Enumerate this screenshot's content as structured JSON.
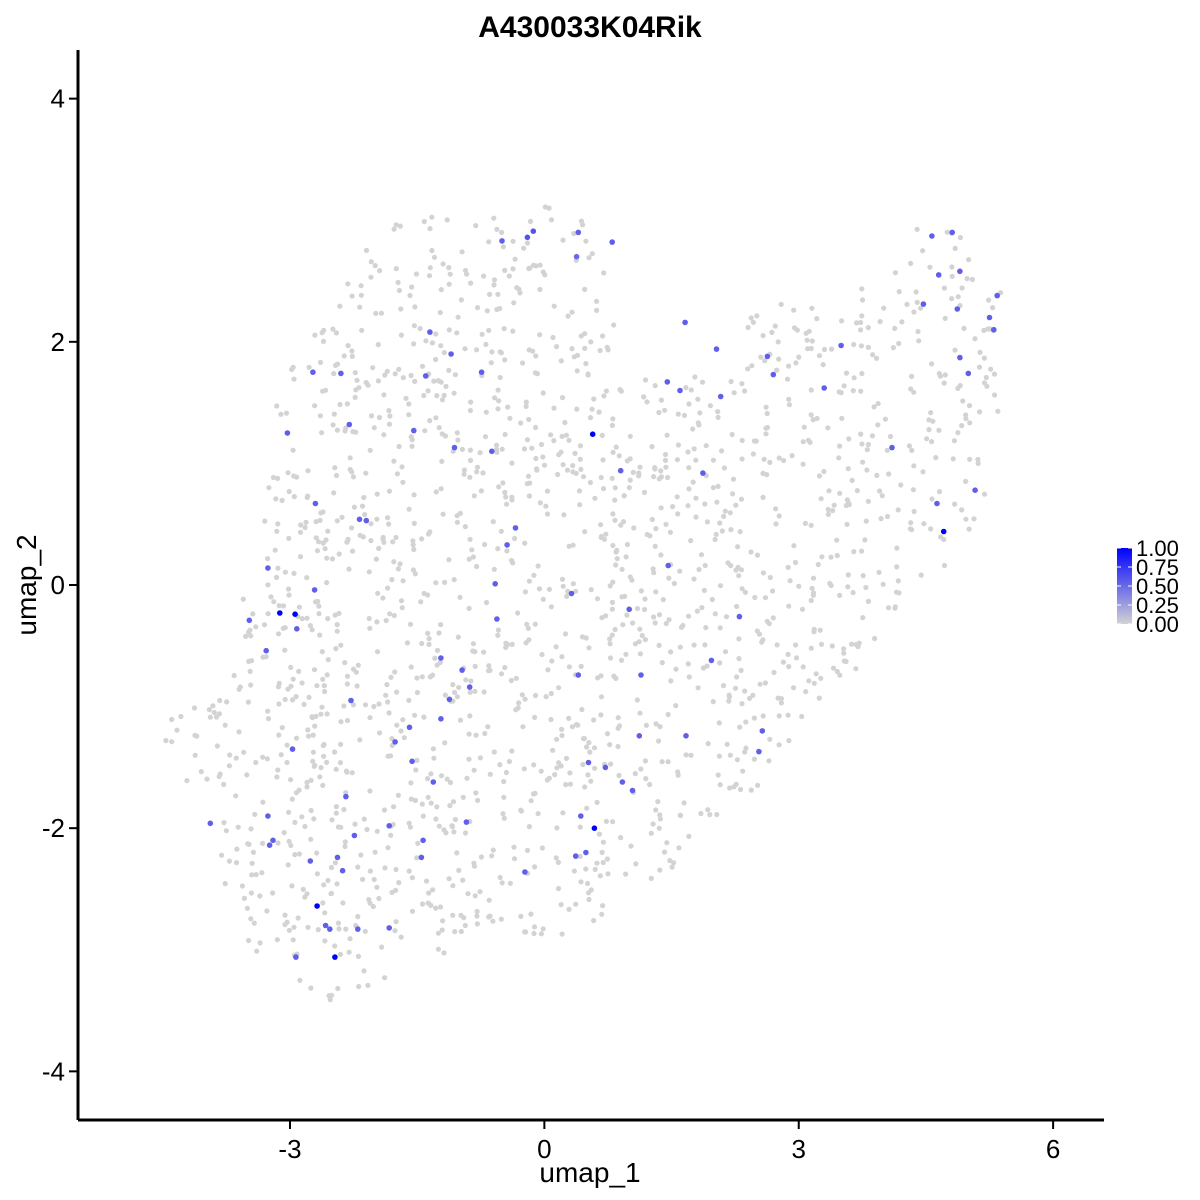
{
  "chart_data": {
    "type": "scatter",
    "title": "A430033K04Rik",
    "xlabel": "umap_1",
    "ylabel": "umap_2",
    "xlim": [
      -5.5,
      6.6
    ],
    "ylim": [
      -4.4,
      4.4
    ],
    "x_ticks": [
      -3,
      0,
      3,
      6
    ],
    "y_ticks": [
      -4,
      -2,
      0,
      2,
      4
    ],
    "x_tick_labels": [
      "-3",
      "0",
      "3",
      "6"
    ],
    "y_tick_labels": [
      "-4",
      "-2",
      "0",
      "2",
      "4"
    ],
    "grid": false,
    "legend": {
      "placement": "right",
      "type": "colorbar",
      "labels": [
        "1.00",
        "0.75",
        "0.50",
        "0.25",
        "0.00"
      ],
      "values": [
        1.0,
        0.75,
        0.5,
        0.25,
        0.0
      ]
    },
    "colors": {
      "low": "#d3d3d3",
      "high": "#0000ff"
    },
    "background_points": {
      "count": 1750,
      "value": 0.0,
      "cloud_outline": [
        [
          -4.7,
          -1.2
        ],
        [
          -4.5,
          -1.3
        ],
        [
          -4.3,
          -1.5
        ],
        [
          -4.0,
          -1.9
        ],
        [
          -3.75,
          -2.55
        ],
        [
          -3.5,
          -2.95
        ],
        [
          -3.2,
          -3.2
        ],
        [
          -2.9,
          -3.25
        ],
        [
          -2.6,
          -3.45
        ],
        [
          -2.25,
          -3.35
        ],
        [
          -1.6,
          -3.15
        ],
        [
          -1.0,
          -3.0
        ],
        [
          -0.4,
          -2.9
        ],
        [
          0.3,
          -2.9
        ],
        [
          1.0,
          -2.55
        ],
        [
          1.6,
          -2.3
        ],
        [
          2.1,
          -1.9
        ],
        [
          2.6,
          -1.6
        ],
        [
          3.0,
          -1.15
        ],
        [
          3.6,
          -0.75
        ],
        [
          4.0,
          -0.5
        ],
        [
          4.4,
          -0.05
        ],
        [
          4.75,
          0.15
        ],
        [
          5.15,
          0.55
        ],
        [
          5.3,
          1.15
        ],
        [
          5.45,
          1.9
        ],
        [
          5.4,
          2.45
        ],
        [
          5.05,
          2.7
        ],
        [
          4.75,
          3.05
        ],
        [
          4.4,
          2.95
        ],
        [
          4.05,
          2.45
        ],
        [
          3.5,
          2.5
        ],
        [
          3.05,
          2.4
        ],
        [
          2.5,
          2.25
        ],
        [
          2.15,
          1.95
        ],
        [
          1.55,
          1.7
        ],
        [
          1.0,
          1.9
        ],
        [
          0.8,
          2.45
        ],
        [
          0.45,
          3.05
        ],
        [
          0.05,
          3.15
        ],
        [
          -0.5,
          3.05
        ],
        [
          -1.2,
          3.05
        ],
        [
          -1.85,
          2.95
        ],
        [
          -2.1,
          2.85
        ],
        [
          -2.35,
          2.6
        ],
        [
          -2.6,
          2.2
        ],
        [
          -2.95,
          1.95
        ],
        [
          -3.2,
          1.4
        ],
        [
          -3.25,
          0.9
        ],
        [
          -3.35,
          0.5
        ],
        [
          -3.5,
          0.1
        ],
        [
          -3.7,
          -0.35
        ],
        [
          -3.8,
          -0.75
        ],
        [
          -4.05,
          -0.95
        ],
        [
          -4.45,
          -1.1
        ]
      ]
    },
    "points": [
      {
        "x": 0.57,
        "y": 1.24,
        "value": 1.0
      },
      {
        "x": -2.94,
        "y": -0.24,
        "value": 1.0
      },
      {
        "x": -3.12,
        "y": -0.23,
        "value": 1.0
      },
      {
        "x": 0.59,
        "y": -2.0,
        "value": 1.0
      },
      {
        "x": -2.68,
        "y": -2.64,
        "value": 1.0
      },
      {
        "x": -2.47,
        "y": -3.06,
        "value": 1.0
      },
      {
        "x": 4.71,
        "y": 0.44,
        "value": 1.0
      },
      {
        "x": -0.13,
        "y": 2.91,
        "value": 0.6
      },
      {
        "x": -0.2,
        "y": 2.86,
        "value": 0.6
      },
      {
        "x": -0.5,
        "y": 2.83,
        "value": 0.55
      },
      {
        "x": 0.4,
        "y": 2.9,
        "value": 0.55
      },
      {
        "x": 0.8,
        "y": 2.82,
        "value": 0.55
      },
      {
        "x": 0.38,
        "y": 2.7,
        "value": 0.5
      },
      {
        "x": -1.35,
        "y": 2.08,
        "value": 0.55
      },
      {
        "x": -1.1,
        "y": 1.9,
        "value": 0.55
      },
      {
        "x": -2.73,
        "y": 1.75,
        "value": 0.55
      },
      {
        "x": -2.4,
        "y": 1.74,
        "value": 0.55
      },
      {
        "x": -1.4,
        "y": 1.72,
        "value": 0.55
      },
      {
        "x": -0.74,
        "y": 1.75,
        "value": 0.55
      },
      {
        "x": -2.3,
        "y": 1.32,
        "value": 0.55
      },
      {
        "x": -1.54,
        "y": 1.27,
        "value": 0.55
      },
      {
        "x": -3.03,
        "y": 1.25,
        "value": 0.55
      },
      {
        "x": -1.06,
        "y": 1.13,
        "value": 0.55
      },
      {
        "x": -0.62,
        "y": 1.1,
        "value": 0.55
      },
      {
        "x": 0.9,
        "y": 0.94,
        "value": 0.55
      },
      {
        "x": -2.7,
        "y": 0.67,
        "value": 0.55
      },
      {
        "x": -2.18,
        "y": 0.54,
        "value": 0.55
      },
      {
        "x": -2.1,
        "y": 0.53,
        "value": 0.55
      },
      {
        "x": -0.34,
        "y": 0.47,
        "value": 0.55
      },
      {
        "x": -0.44,
        "y": 0.33,
        "value": 0.55
      },
      {
        "x": -3.26,
        "y": 0.14,
        "value": 0.55
      },
      {
        "x": -2.71,
        "y": -0.04,
        "value": 0.55
      },
      {
        "x": -0.58,
        "y": 0.01,
        "value": 0.55
      },
      {
        "x": 0.32,
        "y": -0.07,
        "value": 0.55
      },
      {
        "x": 1.46,
        "y": 0.16,
        "value": 0.55
      },
      {
        "x": -3.48,
        "y": -0.29,
        "value": 0.55
      },
      {
        "x": -2.92,
        "y": -0.36,
        "value": 0.55
      },
      {
        "x": -3.28,
        "y": -0.54,
        "value": 0.55
      },
      {
        "x": -0.56,
        "y": -0.28,
        "value": 0.55
      },
      {
        "x": 1.0,
        "y": -0.2,
        "value": 0.55
      },
      {
        "x": 2.3,
        "y": -0.26,
        "value": 0.55
      },
      {
        "x": -1.22,
        "y": -0.6,
        "value": 0.55
      },
      {
        "x": -0.97,
        "y": -0.7,
        "value": 0.55
      },
      {
        "x": -0.88,
        "y": -0.84,
        "value": 0.55
      },
      {
        "x": -1.12,
        "y": -0.94,
        "value": 0.55
      },
      {
        "x": 0.4,
        "y": -0.74,
        "value": 0.55
      },
      {
        "x": 1.14,
        "y": -0.74,
        "value": 0.55
      },
      {
        "x": 1.97,
        "y": -0.62,
        "value": 0.55
      },
      {
        "x": -2.28,
        "y": -0.95,
        "value": 0.55
      },
      {
        "x": -1.22,
        "y": -1.1,
        "value": 0.55
      },
      {
        "x": -1.59,
        "y": -1.17,
        "value": 0.55
      },
      {
        "x": -2.97,
        "y": -1.35,
        "value": 0.55
      },
      {
        "x": -1.76,
        "y": -1.29,
        "value": 0.55
      },
      {
        "x": -1.56,
        "y": -1.45,
        "value": 0.55
      },
      {
        "x": -1.31,
        "y": -1.62,
        "value": 0.55
      },
      {
        "x": 1.12,
        "y": -1.24,
        "value": 0.55
      },
      {
        "x": 1.67,
        "y": -1.24,
        "value": 0.55
      },
      {
        "x": 2.57,
        "y": -1.2,
        "value": 0.55
      },
      {
        "x": 2.53,
        "y": -1.37,
        "value": 0.55
      },
      {
        "x": 0.52,
        "y": -1.46,
        "value": 0.55
      },
      {
        "x": 0.72,
        "y": -1.5,
        "value": 0.55
      },
      {
        "x": 0.92,
        "y": -1.62,
        "value": 0.55
      },
      {
        "x": 1.04,
        "y": -1.69,
        "value": 0.55
      },
      {
        "x": -2.34,
        "y": -1.74,
        "value": 0.55
      },
      {
        "x": -1.83,
        "y": -1.98,
        "value": 0.55
      },
      {
        "x": -0.92,
        "y": -1.95,
        "value": 0.55
      },
      {
        "x": 0.43,
        "y": -1.9,
        "value": 0.55
      },
      {
        "x": 0.49,
        "y": -2.2,
        "value": 0.55
      },
      {
        "x": 0.37,
        "y": -2.23,
        "value": 0.55
      },
      {
        "x": -3.94,
        "y": -1.96,
        "value": 0.55
      },
      {
        "x": -3.26,
        "y": -1.9,
        "value": 0.55
      },
      {
        "x": -3.2,
        "y": -2.1,
        "value": 0.55
      },
      {
        "x": -3.24,
        "y": -2.14,
        "value": 0.55
      },
      {
        "x": -2.24,
        "y": -2.06,
        "value": 0.55
      },
      {
        "x": -1.43,
        "y": -2.1,
        "value": 0.55
      },
      {
        "x": -1.45,
        "y": -2.24,
        "value": 0.55
      },
      {
        "x": -2.76,
        "y": -2.27,
        "value": 0.55
      },
      {
        "x": -2.44,
        "y": -2.24,
        "value": 0.55
      },
      {
        "x": -2.38,
        "y": -2.35,
        "value": 0.55
      },
      {
        "x": -0.23,
        "y": -2.36,
        "value": 0.55
      },
      {
        "x": -2.53,
        "y": -2.83,
        "value": 0.55
      },
      {
        "x": -2.2,
        "y": -2.83,
        "value": 0.55
      },
      {
        "x": -1.83,
        "y": -2.82,
        "value": 0.55
      },
      {
        "x": -2.58,
        "y": -2.8,
        "value": 0.55
      },
      {
        "x": -2.93,
        "y": -3.06,
        "value": 0.55
      },
      {
        "x": 1.6,
        "y": 1.6,
        "value": 0.55
      },
      {
        "x": 1.45,
        "y": 1.67,
        "value": 0.55
      },
      {
        "x": 1.66,
        "y": 2.16,
        "value": 0.55
      },
      {
        "x": 2.03,
        "y": 1.94,
        "value": 0.55
      },
      {
        "x": 2.08,
        "y": 1.55,
        "value": 0.55
      },
      {
        "x": 1.87,
        "y": 0.92,
        "value": 0.55
      },
      {
        "x": 2.63,
        "y": 1.88,
        "value": 0.55
      },
      {
        "x": 2.7,
        "y": 1.73,
        "value": 0.55
      },
      {
        "x": 3.3,
        "y": 1.62,
        "value": 0.55
      },
      {
        "x": 3.5,
        "y": 1.97,
        "value": 0.55
      },
      {
        "x": 4.1,
        "y": 1.13,
        "value": 0.55
      },
      {
        "x": 4.47,
        "y": 2.31,
        "value": 0.55
      },
      {
        "x": 4.57,
        "y": 2.87,
        "value": 0.55
      },
      {
        "x": 4.81,
        "y": 2.9,
        "value": 0.55
      },
      {
        "x": 4.65,
        "y": 2.55,
        "value": 0.55
      },
      {
        "x": 4.9,
        "y": 2.58,
        "value": 0.55
      },
      {
        "x": 4.87,
        "y": 2.27,
        "value": 0.55
      },
      {
        "x": 4.9,
        "y": 1.87,
        "value": 0.55
      },
      {
        "x": 5.0,
        "y": 1.74,
        "value": 0.55
      },
      {
        "x": 5.25,
        "y": 2.2,
        "value": 0.55
      },
      {
        "x": 5.3,
        "y": 2.1,
        "value": 0.55
      },
      {
        "x": 5.34,
        "y": 2.38,
        "value": 0.55
      },
      {
        "x": 4.63,
        "y": 0.67,
        "value": 0.55
      },
      {
        "x": 5.08,
        "y": 0.78,
        "value": 0.55
      }
    ]
  }
}
